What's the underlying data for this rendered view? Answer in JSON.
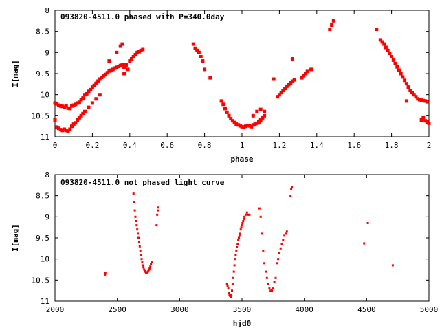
{
  "colors": {
    "points": "#ff0000",
    "axes": "#000000",
    "background": "#ffffff"
  },
  "chart_data": [
    {
      "type": "scatter",
      "title": "093820-4511.0 phased with P=340.0day",
      "xlabel": "phase",
      "ylabel": "I[mag]",
      "xlim": [
        0,
        2
      ],
      "ylim": [
        11,
        8
      ],
      "y_inverted": true,
      "grid": false,
      "legend": "none",
      "marker": "filled-square",
      "xticks": [
        "0",
        "0.2",
        "0.4",
        "0.6",
        "0.8",
        "1",
        "1.2",
        "1.4",
        "1.6",
        "1.8",
        "2"
      ],
      "yticks": [
        "8",
        "8.5",
        "9",
        "9.5",
        "10",
        "10.5",
        "11"
      ],
      "series": [
        {
          "x": [
            0.0,
            0.005,
            0.01,
            0.02,
            0.03,
            0.04,
            0.05,
            0.06,
            0.07,
            0.08,
            0.09,
            0.1,
            0.11,
            0.12,
            0.13,
            0.14,
            0.15,
            0.16,
            0.17,
            0.18,
            0.19,
            0.2,
            0.21,
            0.22,
            0.23,
            0.24,
            0.25,
            0.26,
            0.27,
            0.28,
            0.29,
            0.3,
            0.31,
            0.32,
            0.33,
            0.34,
            0.35,
            0.36,
            0.37,
            0.38,
            0.39,
            0.4,
            0.41,
            0.42,
            0.43,
            0.44,
            0.45,
            0.46,
            0.47,
            0.0,
            0.01,
            0.02,
            0.03,
            0.04,
            0.05,
            0.06,
            0.07,
            0.08,
            0.09,
            0.1,
            0.11,
            0.12,
            0.13,
            0.14,
            0.15,
            0.16,
            0.18,
            0.2,
            0.22,
            0.24,
            0.29,
            0.33,
            0.35,
            0.36,
            0.37,
            0.38,
            0.74,
            0.75,
            0.76,
            0.77,
            0.78,
            0.79,
            0.8,
            0.83,
            0.89,
            0.9,
            0.91,
            0.92,
            0.93,
            0.94,
            0.95,
            0.96,
            0.97,
            0.98,
            0.99,
            1.0,
            1.01,
            1.02,
            1.03,
            1.04,
            1.05,
            1.06,
            1.07,
            1.08,
            1.09,
            1.1,
            1.11,
            1.12,
            1.06,
            1.08,
            1.1,
            1.12,
            1.17,
            1.19,
            1.2,
            1.21,
            1.22,
            1.23,
            1.24,
            1.25,
            1.26,
            1.27,
            1.28,
            1.27,
            1.32,
            1.33,
            1.34,
            1.35,
            1.37,
            1.47,
            1.48,
            1.49,
            1.72,
            1.74,
            1.75,
            1.76,
            1.77,
            1.78,
            1.79,
            1.8,
            1.81,
            1.82,
            1.83,
            1.84,
            1.85,
            1.86,
            1.87,
            1.88,
            1.89,
            1.9,
            1.91,
            1.92,
            1.93,
            1.94,
            1.95,
            1.96,
            1.97,
            1.98,
            1.99,
            1.88,
            1.96,
            1.97,
            1.98,
            1.99,
            2.0
          ],
          "y": [
            10.2,
            10.21,
            10.22,
            10.25,
            10.27,
            10.28,
            10.3,
            10.26,
            10.32,
            10.33,
            10.27,
            10.25,
            10.23,
            10.2,
            10.18,
            10.12,
            10.08,
            10.0,
            9.98,
            9.92,
            9.88,
            9.82,
            9.78,
            9.73,
            9.68,
            9.63,
            9.59,
            9.55,
            9.52,
            9.48,
            9.44,
            9.42,
            9.4,
            9.37,
            9.35,
            9.33,
            9.31,
            9.29,
            9.35,
            9.28,
            9.4,
            9.2,
            9.15,
            9.1,
            9.05,
            9.0,
            8.98,
            8.95,
            8.93,
            10.6,
            10.77,
            10.8,
            10.83,
            10.85,
            10.82,
            10.85,
            10.87,
            10.82,
            10.75,
            10.7,
            10.67,
            10.6,
            10.55,
            10.5,
            10.45,
            10.4,
            10.3,
            10.2,
            10.1,
            10.0,
            9.2,
            9.0,
            8.85,
            8.8,
            9.5,
            9.3,
            8.8,
            8.9,
            8.95,
            9.0,
            9.1,
            9.2,
            9.4,
            9.6,
            10.15,
            10.23,
            10.33,
            10.42,
            10.5,
            10.57,
            10.62,
            10.66,
            10.7,
            10.72,
            10.74,
            10.76,
            10.77,
            10.75,
            10.73,
            10.74,
            10.76,
            10.72,
            10.7,
            10.68,
            10.65,
            10.6,
            10.55,
            10.5,
            10.5,
            10.4,
            10.35,
            10.4,
            9.63,
            10.05,
            10.0,
            9.95,
            9.9,
            9.85,
            9.8,
            9.76,
            9.72,
            9.68,
            9.65,
            9.15,
            9.6,
            9.55,
            9.5,
            9.45,
            9.4,
            8.45,
            8.35,
            8.25,
            8.45,
            8.7,
            8.75,
            8.8,
            8.88,
            8.95,
            9.02,
            9.1,
            9.18,
            9.26,
            9.34,
            9.42,
            9.5,
            9.58,
            9.66,
            9.74,
            9.82,
            9.9,
            9.95,
            10.0,
            10.05,
            10.1,
            10.12,
            10.13,
            10.14,
            10.15,
            10.17,
            10.15,
            10.6,
            10.55,
            10.62,
            10.65,
            10.68
          ]
        }
      ]
    },
    {
      "type": "scatter",
      "title": "093820-4511.0 not phased light curve",
      "xlabel": "hjd0",
      "ylabel": "I[mag]",
      "xlim": [
        2000,
        5000
      ],
      "ylim": [
        11,
        8
      ],
      "y_inverted": true,
      "grid": false,
      "legend": "none",
      "marker": "small-dot",
      "xticks": [
        "2000",
        "2500",
        "3000",
        "3500",
        "4000",
        "4500",
        "5000"
      ],
      "yticks": [
        "8",
        "8.5",
        "9",
        "9.5",
        "10",
        "10.5",
        "11"
      ],
      "series": [
        {
          "x": [
            2400,
            2402,
            2404,
            2630,
            2635,
            2640,
            2645,
            2650,
            2655,
            2660,
            2665,
            2670,
            2675,
            2680,
            2685,
            2690,
            2695,
            2700,
            2705,
            2710,
            2715,
            2720,
            2725,
            2730,
            2735,
            2740,
            2745,
            2750,
            2755,
            2760,
            2765,
            2770,
            2775,
            2815,
            2820,
            2825,
            2830,
            3380,
            3385,
            3390,
            3395,
            3400,
            3405,
            3410,
            3415,
            3420,
            3425,
            3430,
            3435,
            3440,
            3445,
            3450,
            3455,
            3460,
            3465,
            3470,
            3475,
            3480,
            3485,
            3490,
            3495,
            3500,
            3505,
            3510,
            3515,
            3520,
            3530,
            3540,
            3550,
            3560,
            3640,
            3650,
            3660,
            3670,
            3680,
            3690,
            3700,
            3710,
            3720,
            3730,
            3740,
            3750,
            3760,
            3770,
            3780,
            3790,
            3800,
            3810,
            3820,
            3830,
            3840,
            3850,
            3860,
            3890,
            3895,
            3900,
            4480,
            4510,
            4710
          ],
          "y": [
            10.35,
            10.37,
            10.33,
            8.45,
            8.65,
            8.85,
            9.0,
            9.1,
            9.2,
            9.3,
            9.4,
            9.5,
            9.6,
            9.7,
            9.8,
            9.9,
            10.0,
            10.08,
            10.15,
            10.2,
            10.25,
            10.28,
            10.3,
            10.32,
            10.33,
            10.32,
            10.3,
            10.27,
            10.25,
            10.22,
            10.18,
            10.12,
            10.08,
            9.2,
            8.95,
            8.85,
            8.78,
            10.6,
            10.65,
            10.7,
            10.8,
            10.85,
            10.88,
            10.9,
            10.85,
            10.75,
            10.6,
            10.45,
            10.3,
            10.15,
            10.0,
            9.9,
            9.8,
            9.72,
            9.65,
            9.55,
            9.5,
            9.45,
            9.4,
            9.3,
            9.25,
            9.2,
            9.15,
            9.1,
            9.05,
            9.0,
            8.95,
            8.9,
            8.95,
            8.95,
            8.8,
            9.0,
            9.4,
            9.8,
            10.1,
            10.3,
            10.45,
            10.6,
            10.7,
            10.75,
            10.75,
            10.7,
            10.55,
            10.45,
            10.1,
            10.0,
            9.85,
            9.75,
            9.65,
            9.55,
            9.45,
            9.4,
            9.35,
            8.5,
            8.35,
            8.3,
            9.63,
            9.15,
            10.15
          ]
        }
      ]
    }
  ]
}
